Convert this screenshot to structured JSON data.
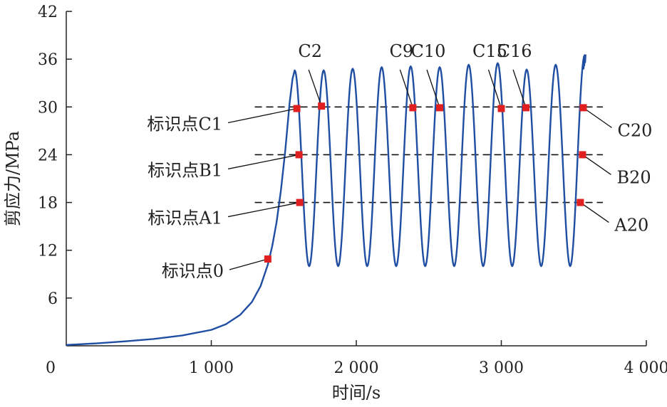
{
  "chart_data": {
    "type": "line",
    "title": "",
    "xlabel": "时间/s",
    "ylabel": "剪应力/MPa",
    "xlim": [
      0,
      4000
    ],
    "ylim": [
      0,
      42
    ],
    "x_ticks": [
      {
        "value": 0,
        "label": "0"
      },
      {
        "value": 1000,
        "label": "1 000"
      },
      {
        "value": 2000,
        "label": "2 000"
      },
      {
        "value": 3000,
        "label": "3 000"
      },
      {
        "value": 4000,
        "label": "4 000"
      }
    ],
    "y_ticks": [
      {
        "value": 6,
        "label": "6"
      },
      {
        "value": 12,
        "label": "12"
      },
      {
        "value": 18,
        "label": "18"
      },
      {
        "value": 24,
        "label": "24"
      },
      {
        "value": 30,
        "label": "30"
      },
      {
        "value": 36,
        "label": "36"
      },
      {
        "value": 42,
        "label": "42"
      }
    ],
    "grid": false,
    "line_color": "#1f4ea3",
    "marker_color": "#e02020",
    "reference_lines": [
      {
        "y": 30,
        "x_start": 1300,
        "x_end": 3700
      },
      {
        "y": 24,
        "x_start": 1300,
        "x_end": 3700
      },
      {
        "y": 18,
        "x_start": 1300,
        "x_end": 3700
      }
    ],
    "curve": {
      "loading": [
        [
          0,
          0.1
        ],
        [
          200,
          0.3
        ],
        [
          400,
          0.55
        ],
        [
          600,
          0.85
        ],
        [
          800,
          1.3
        ],
        [
          1000,
          2.0
        ],
        [
          1100,
          2.7
        ],
        [
          1200,
          3.9
        ],
        [
          1280,
          5.5
        ],
        [
          1340,
          7.5
        ],
        [
          1390,
          10.2
        ],
        [
          1420,
          12.5
        ],
        [
          1450,
          15.5
        ],
        [
          1480,
          19.5
        ],
        [
          1510,
          24.5
        ],
        [
          1540,
          30.5
        ],
        [
          1560,
          33.5
        ],
        [
          1575,
          34.6
        ]
      ],
      "cycle_start_x": 1575,
      "peaks_x": [
        1575,
        1775,
        1975,
        2175,
        2375,
        2575,
        2775,
        2975,
        3175,
        3375
      ],
      "peaks_y": [
        34.6,
        34.6,
        34.8,
        35.0,
        35.1,
        35.0,
        35.3,
        35.5,
        34.7,
        35.3
      ],
      "valley_y": 10,
      "end_x": 3575,
      "end_peak_y": 36.5
    },
    "markers": [
      {
        "label": "标识点0",
        "x": 1390,
        "y": 10.9,
        "label_side": "left"
      },
      {
        "label": "标识点A1",
        "x": 1610,
        "y": 18,
        "label_side": "left"
      },
      {
        "label": "标识点B1",
        "x": 1605,
        "y": 24,
        "label_side": "left"
      },
      {
        "label": "标识点C1",
        "x": 1590,
        "y": 29.8,
        "label_side": "left"
      },
      {
        "label": "C2",
        "x": 1760,
        "y": 30.1,
        "label_side": "top"
      },
      {
        "label": "C9",
        "x": 2390,
        "y": 29.9,
        "label_side": "top"
      },
      {
        "label": "C10",
        "x": 2575,
        "y": 29.9,
        "label_side": "top"
      },
      {
        "label": "C15",
        "x": 3000,
        "y": 29.8,
        "label_side": "top"
      },
      {
        "label": "C16",
        "x": 3170,
        "y": 29.9,
        "label_side": "top"
      },
      {
        "label": "C20",
        "x": 3565,
        "y": 29.9,
        "label_side": "right"
      },
      {
        "label": "B20",
        "x": 3560,
        "y": 24,
        "label_side": "right"
      },
      {
        "label": "A20",
        "x": 3545,
        "y": 18,
        "label_side": "right"
      }
    ]
  }
}
